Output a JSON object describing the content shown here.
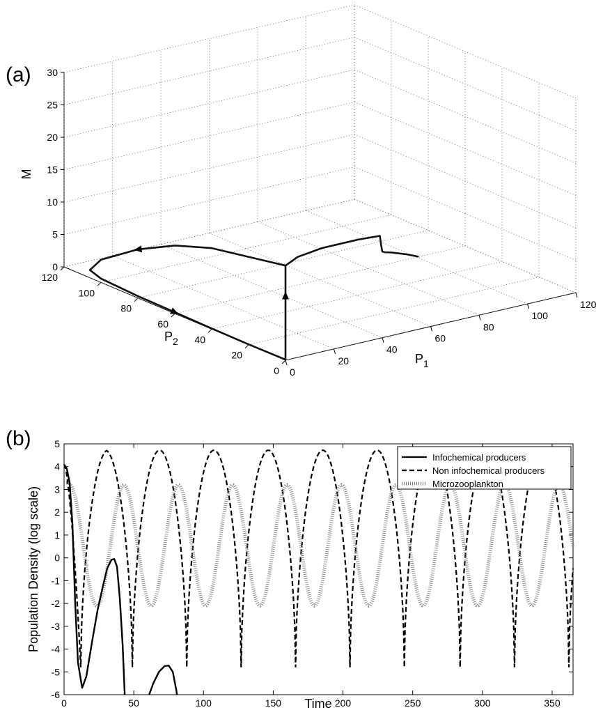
{
  "chart_data": [
    {
      "panel_label": "(a)",
      "type": "line3d",
      "xlabel": "P",
      "xlabel_sub": "1",
      "ylabel": "P",
      "ylabel_sub": "2",
      "zlabel": "M",
      "xlim": [
        0,
        120
      ],
      "ylim": [
        0,
        120
      ],
      "zlim": [
        0,
        30
      ],
      "xticks": [
        "0",
        "20",
        "40",
        "60",
        "80",
        "100",
        "120"
      ],
      "yticks": [
        "0",
        "20",
        "40",
        "60",
        "80",
        "100",
        "120"
      ],
      "zticks": [
        "0",
        "5",
        "10",
        "15",
        "20",
        "25",
        "30"
      ],
      "grid": true,
      "series": [
        {
          "name": "",
          "points": [
            [
              55,
              0,
              11.2
            ],
            [
              50,
              0,
              12.0
            ],
            [
              44,
              0,
              12.8
            ],
            [
              41,
              0,
              13.1
            ],
            [
              40,
              0,
              13.3
            ],
            [
              39.5,
              0,
              14.4
            ],
            [
              39,
              0,
              15.8
            ],
            [
              30,
              0,
              16.0
            ],
            [
              15,
              0,
              16.0
            ],
            [
              5,
              0,
              15.5
            ],
            [
              0,
              0,
              14.6
            ],
            [
              0,
              40,
              12.5
            ],
            [
              0,
              60,
              10.5
            ],
            [
              0,
              80,
              7.5
            ],
            [
              0,
              100,
              3.5
            ],
            [
              0,
              106,
              1.2
            ],
            [
              0,
              100,
              0.6
            ],
            [
              0,
              80,
              0.3
            ],
            [
              0,
              60,
              0.2
            ],
            [
              0,
              40,
              0.1
            ],
            [
              0,
              20,
              0.05
            ],
            [
              0,
              0,
              0.1
            ],
            [
              0,
              0,
              5
            ],
            [
              0,
              0,
              10
            ],
            [
              0,
              0,
              14.6
            ]
          ],
          "arrows_at": [
            [
              0,
              80,
              7.5
            ],
            [
              0,
              0,
              10
            ],
            [
              0,
              60,
              0.2
            ]
          ]
        }
      ]
    },
    {
      "panel_label": "(b)",
      "type": "line",
      "xlabel": "Time",
      "ylabel": "Population Density (log scale)",
      "xlim": [
        0,
        365
      ],
      "ylim": [
        -6,
        5
      ],
      "xticks": [
        0,
        50,
        100,
        150,
        200,
        250,
        300,
        350
      ],
      "yticks": [
        -6,
        -5,
        -4,
        -3,
        -2,
        -1,
        0,
        1,
        2,
        3,
        4,
        5
      ],
      "legend_position": "top-right",
      "series": [
        {
          "name": "Infochemical producers",
          "style": "solid",
          "segments": [
            [
              [
                0,
                4.1
              ],
              [
                2,
                3.9
              ],
              [
                4,
                3.3
              ],
              [
                6,
                1.5
              ],
              [
                8,
                -2.0
              ],
              [
                10,
                -4.6
              ],
              [
                13,
                -5.7
              ],
              [
                16,
                -5.2
              ],
              [
                20,
                -3.7
              ],
              [
                24,
                -2.3
              ],
              [
                28,
                -1.2
              ],
              [
                31,
                -0.45
              ],
              [
                34,
                -0.08
              ],
              [
                36,
                -0.05
              ],
              [
                38,
                -0.4
              ],
              [
                40,
                -1.8
              ],
              [
                42,
                -3.8
              ],
              [
                43.5,
                -6.0
              ]
            ],
            [
              [
                61,
                -6.0
              ],
              [
                64,
                -5.5
              ],
              [
                68,
                -5.0
              ],
              [
                72,
                -4.75
              ],
              [
                75,
                -4.72
              ],
              [
                78,
                -5.0
              ],
              [
                80.5,
                -5.8
              ],
              [
                81,
                -6.0
              ]
            ]
          ]
        },
        {
          "name": "Non infochemical producers",
          "style": "dashed",
          "period": 39,
          "min_times": [
            12,
            49,
            88,
            127,
            166,
            205,
            244,
            284,
            323,
            362
          ],
          "min_value": -4.8,
          "max_value": 4.72,
          "start_value": 4.1
        },
        {
          "name": "Microzooplankton",
          "style": "dotted",
          "period": 39,
          "min_times": [
            24,
            63,
            102,
            141,
            180,
            219,
            258,
            297,
            336
          ],
          "max_times": [
            4,
            43,
            82,
            121,
            160,
            199,
            238,
            277,
            316,
            355
          ],
          "min_value": -2.1,
          "max_value": 3.2,
          "start_value": 3.3
        }
      ]
    }
  ]
}
